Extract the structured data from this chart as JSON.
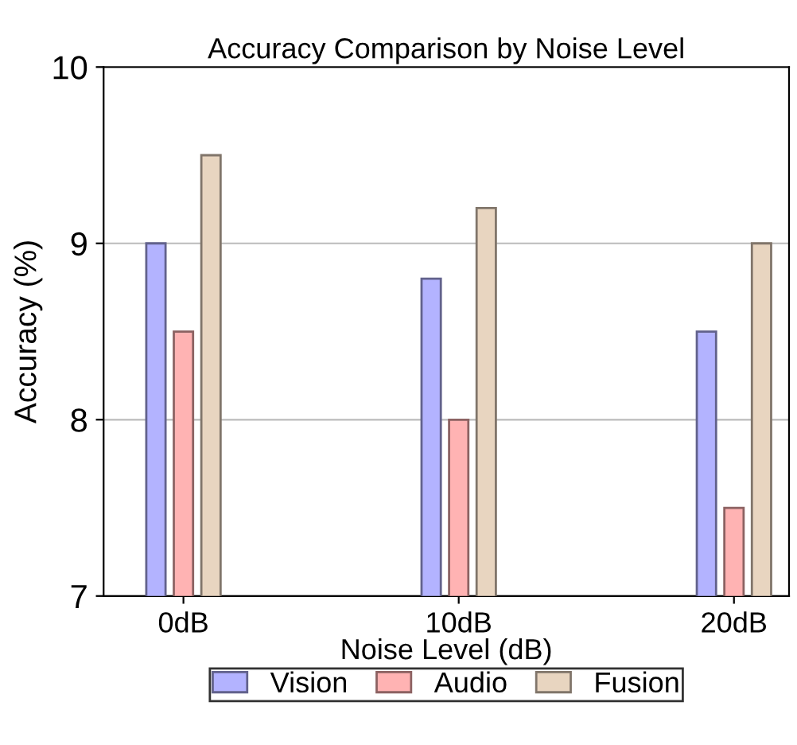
{
  "chart_data": {
    "type": "bar",
    "title": "Accuracy Comparison by Noise Level",
    "xlabel": "Noise Level (dB)",
    "ylabel": "Accuracy (%)",
    "categories": [
      "0dB",
      "10dB",
      "20dB"
    ],
    "series": [
      {
        "name": "Vision",
        "color": "#b3b3ff",
        "values": [
          9.0,
          8.8,
          8.5
        ]
      },
      {
        "name": "Audio",
        "color": "#ffb3b3",
        "values": [
          8.5,
          8.0,
          7.5
        ]
      },
      {
        "name": "Fusion",
        "color": "#e8d5c0",
        "values": [
          9.5,
          9.2,
          9.0
        ]
      }
    ],
    "ylim": [
      7,
      10
    ],
    "yticks": [
      7,
      8,
      9,
      10
    ],
    "grid": "y",
    "legend": "bottom"
  }
}
